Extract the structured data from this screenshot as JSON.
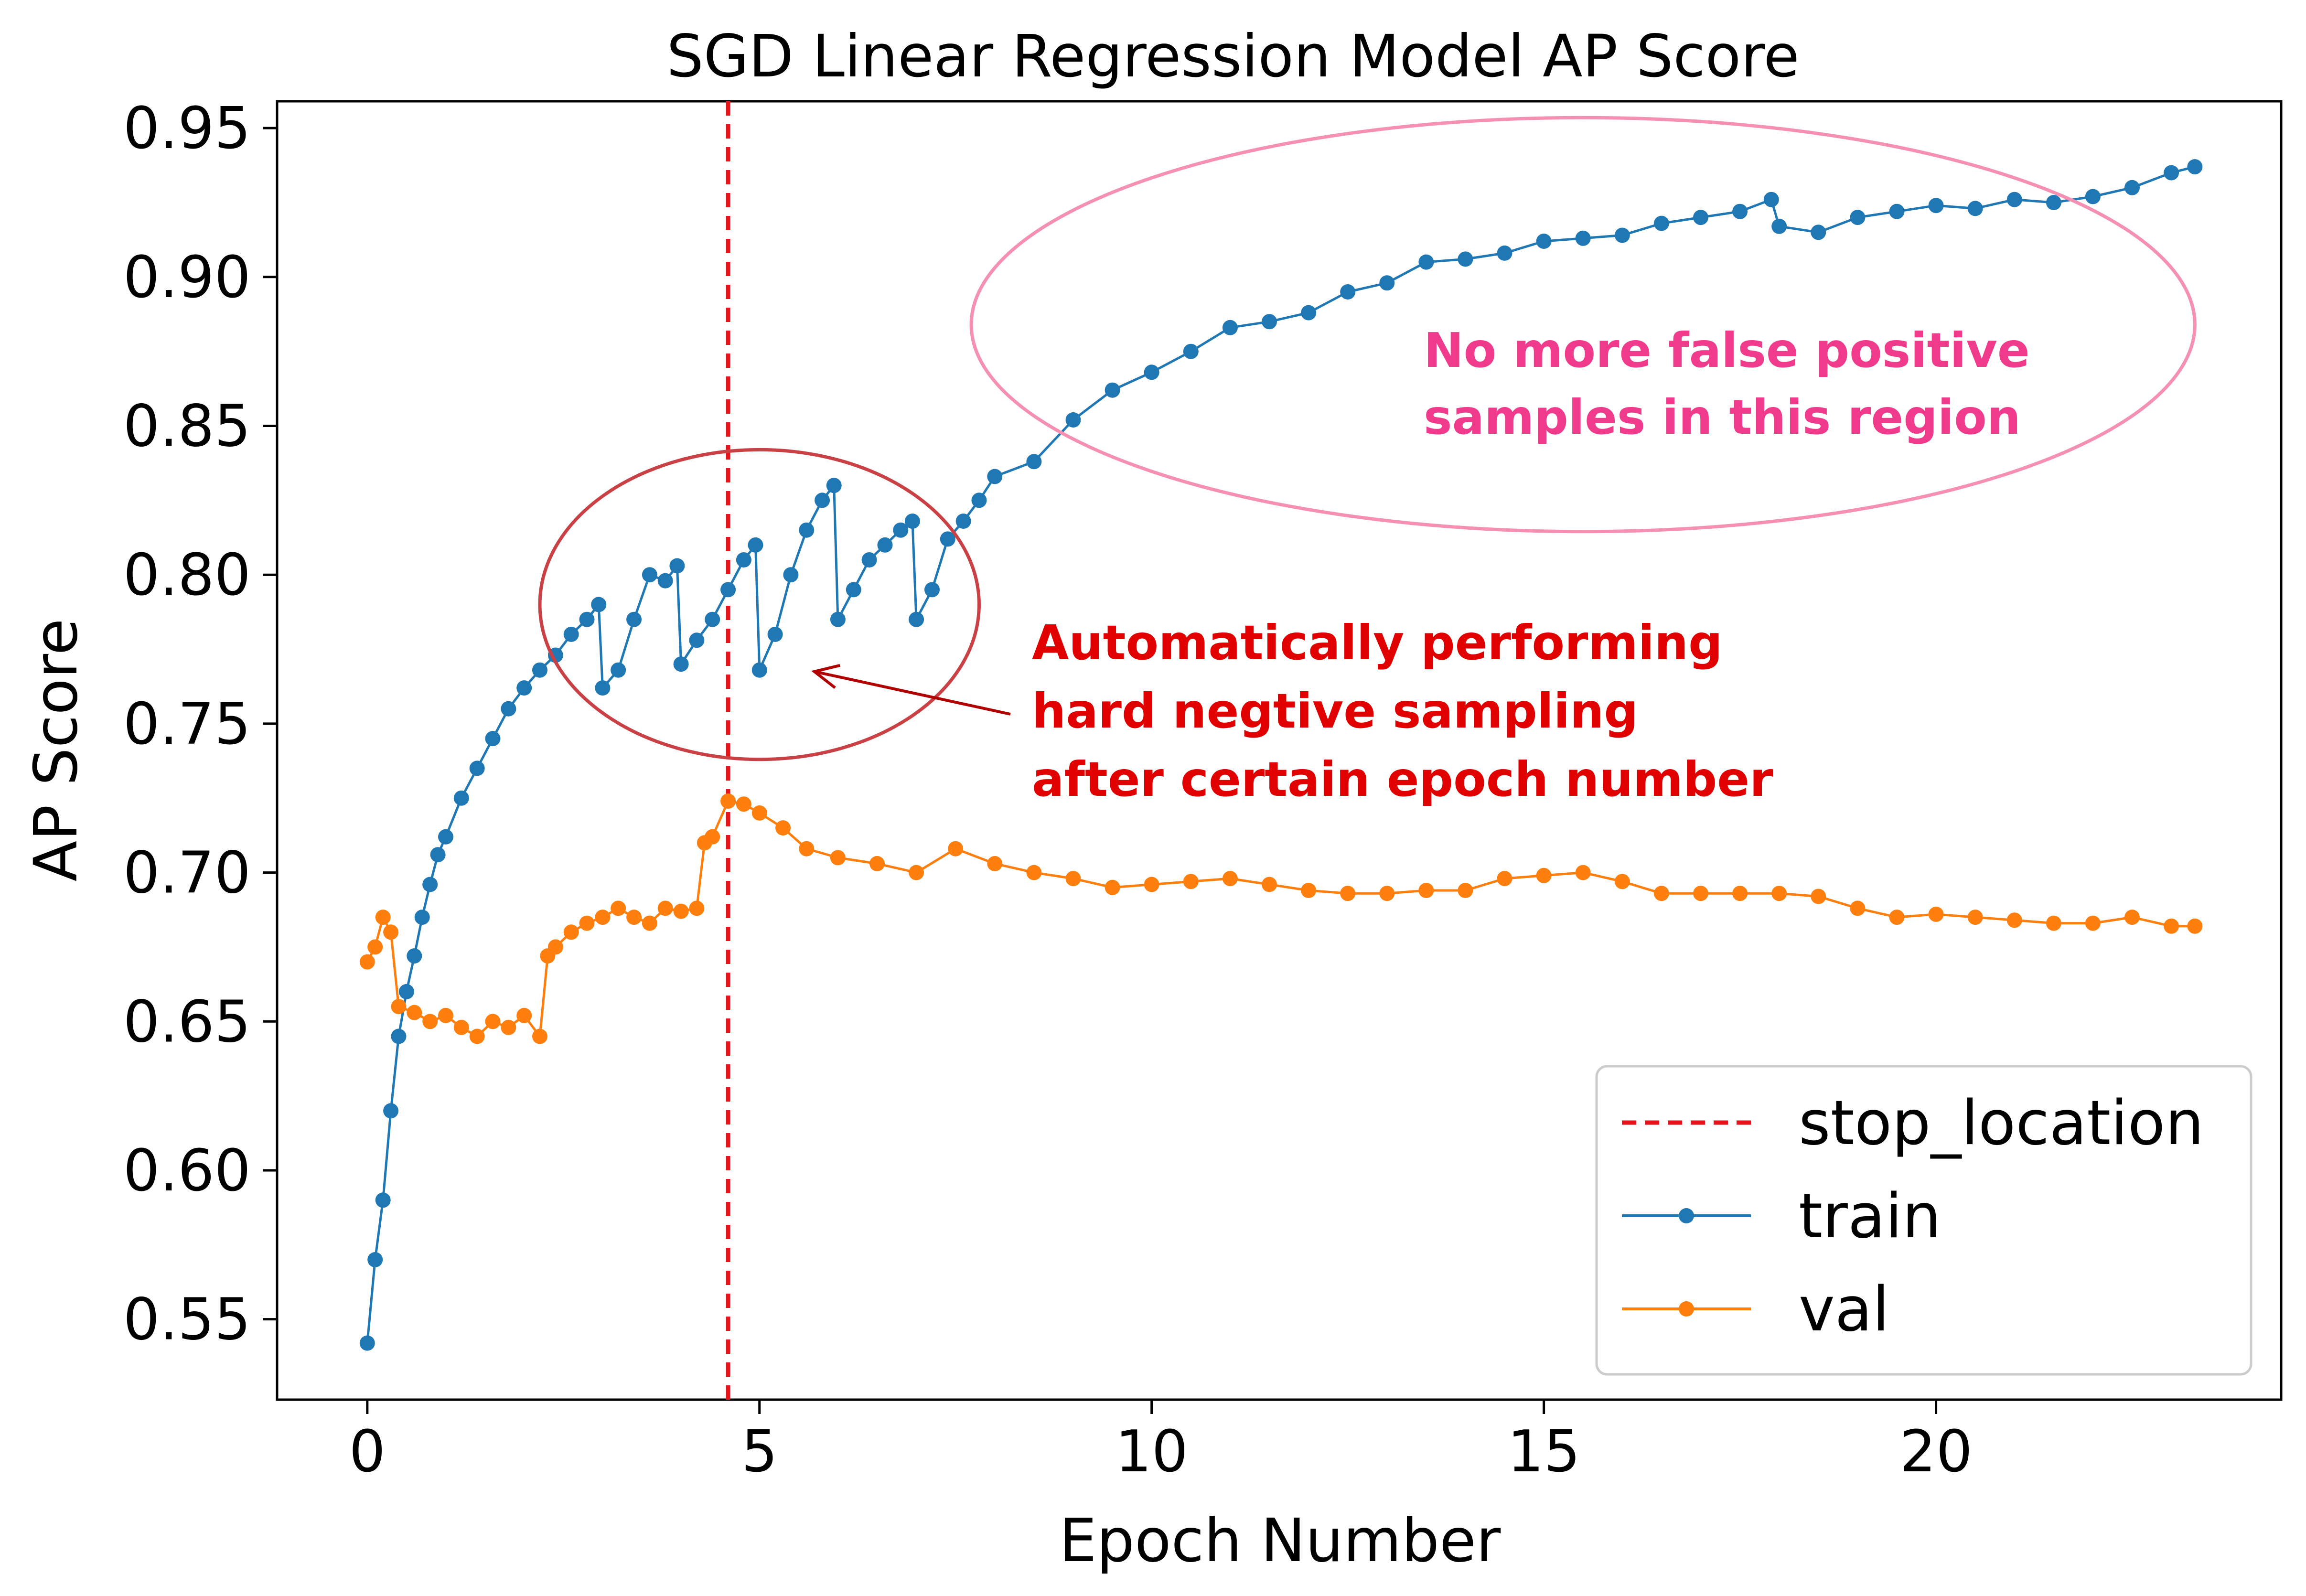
{
  "chart_data": {
    "type": "line",
    "title": "SGD Linear Regression Model AP Score",
    "xlabel": "Epoch Number",
    "ylabel": "AP Score",
    "xlim": [
      -1.15,
      24.4
    ],
    "ylim": [
      0.523,
      0.959
    ],
    "xticks": [
      0,
      5,
      10,
      15,
      20
    ],
    "xtick_labels": [
      "0",
      "5",
      "10",
      "15",
      "20"
    ],
    "yticks": [
      0.55,
      0.6,
      0.65,
      0.7,
      0.75,
      0.8,
      0.85,
      0.9,
      0.95
    ],
    "ytick_labels": [
      "0.55",
      "0.60",
      "0.65",
      "0.70",
      "0.75",
      "0.80",
      "0.85",
      "0.90",
      "0.95"
    ],
    "grid": false,
    "legend": {
      "position": "lower-right",
      "entries": [
        {
          "name": "stop_location",
          "color": "#e8141c",
          "style": "dashed"
        },
        {
          "name": "train",
          "color": "#1f77b4",
          "style": "line-marker"
        },
        {
          "name": "val",
          "color": "#ff7f0e",
          "style": "line-marker"
        }
      ]
    },
    "stop_location": 4.6,
    "series": [
      {
        "name": "train",
        "color": "#1f77b4",
        "x": [
          0.0,
          0.1,
          0.2,
          0.3,
          0.4,
          0.5,
          0.6,
          0.7,
          0.8,
          0.9,
          1.0,
          1.2,
          1.4,
          1.6,
          1.8,
          2.0,
          2.2,
          2.4,
          2.6,
          2.8,
          2.95,
          3.0,
          3.2,
          3.4,
          3.6,
          3.8,
          3.95,
          4.0,
          4.2,
          4.4,
          4.6,
          4.8,
          4.95,
          5.0,
          5.2,
          5.4,
          5.6,
          5.8,
          5.95,
          6.0,
          6.2,
          6.4,
          6.6,
          6.8,
          6.95,
          7.0,
          7.2,
          7.4,
          7.6,
          7.8,
          8.0,
          8.5,
          9.0,
          9.5,
          10.0,
          10.5,
          11.0,
          11.5,
          12.0,
          12.5,
          13.0,
          13.5,
          14.0,
          14.5,
          15.0,
          15.5,
          16.0,
          16.5,
          17.0,
          17.5,
          17.9,
          18.0,
          18.5,
          19.0,
          19.5,
          20.0,
          20.5,
          21.0,
          21.5,
          22.0,
          22.5,
          23.0,
          23.3
        ],
        "values": [
          0.542,
          0.57,
          0.59,
          0.62,
          0.645,
          0.66,
          0.672,
          0.685,
          0.696,
          0.706,
          0.712,
          0.725,
          0.735,
          0.745,
          0.755,
          0.762,
          0.768,
          0.773,
          0.78,
          0.785,
          0.79,
          0.762,
          0.768,
          0.785,
          0.8,
          0.798,
          0.803,
          0.77,
          0.778,
          0.785,
          0.795,
          0.805,
          0.81,
          0.768,
          0.78,
          0.8,
          0.815,
          0.825,
          0.83,
          0.785,
          0.795,
          0.805,
          0.81,
          0.815,
          0.818,
          0.785,
          0.795,
          0.812,
          0.818,
          0.825,
          0.833,
          0.838,
          0.852,
          0.862,
          0.868,
          0.875,
          0.883,
          0.885,
          0.888,
          0.895,
          0.898,
          0.905,
          0.906,
          0.908,
          0.912,
          0.913,
          0.914,
          0.918,
          0.92,
          0.922,
          0.926,
          0.917,
          0.915,
          0.92,
          0.922,
          0.924,
          0.923,
          0.926,
          0.925,
          0.927,
          0.93,
          0.935,
          0.937
        ]
      },
      {
        "name": "val",
        "color": "#ff7f0e",
        "x": [
          0.0,
          0.1,
          0.2,
          0.3,
          0.4,
          0.6,
          0.8,
          1.0,
          1.2,
          1.4,
          1.6,
          1.8,
          2.0,
          2.2,
          2.3,
          2.4,
          2.6,
          2.8,
          3.0,
          3.2,
          3.4,
          3.6,
          3.8,
          4.0,
          4.2,
          4.3,
          4.4,
          4.6,
          4.8,
          5.0,
          5.3,
          5.6,
          6.0,
          6.5,
          7.0,
          7.5,
          8.0,
          8.5,
          9.0,
          9.5,
          10.0,
          10.5,
          11.0,
          11.5,
          12.0,
          12.5,
          13.0,
          13.5,
          14.0,
          14.5,
          15.0,
          15.5,
          16.0,
          16.5,
          17.0,
          17.5,
          18.0,
          18.5,
          19.0,
          19.5,
          20.0,
          20.5,
          21.0,
          21.5,
          22.0,
          22.5,
          23.0,
          23.3
        ],
        "values": [
          0.67,
          0.675,
          0.685,
          0.68,
          0.655,
          0.653,
          0.65,
          0.652,
          0.648,
          0.645,
          0.65,
          0.648,
          0.652,
          0.645,
          0.672,
          0.675,
          0.68,
          0.683,
          0.685,
          0.688,
          0.685,
          0.683,
          0.688,
          0.687,
          0.688,
          0.71,
          0.712,
          0.724,
          0.723,
          0.72,
          0.715,
          0.708,
          0.705,
          0.703,
          0.7,
          0.708,
          0.703,
          0.7,
          0.698,
          0.695,
          0.696,
          0.697,
          0.698,
          0.696,
          0.694,
          0.693,
          0.693,
          0.694,
          0.694,
          0.698,
          0.699,
          0.7,
          0.697,
          0.693,
          0.693,
          0.693,
          0.693,
          0.692,
          0.688,
          0.685,
          0.686,
          0.685,
          0.684,
          0.683,
          0.683,
          0.685,
          0.682,
          0.682
        ]
      }
    ],
    "annotations": [
      {
        "id": "hard-negative",
        "lines": [
          "Automatically performing",
          "hard negtive sampling",
          "after certain epoch number"
        ],
        "color": "#e00000"
      },
      {
        "id": "no-false-positive",
        "lines": [
          "No more false positive",
          "samples in this region"
        ],
        "color": "#f03b8c"
      }
    ]
  }
}
